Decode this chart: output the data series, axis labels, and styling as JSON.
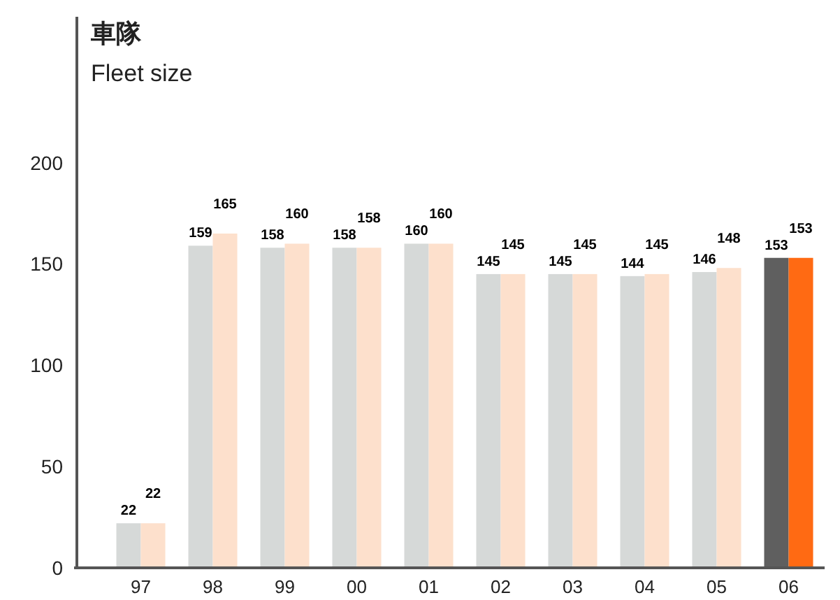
{
  "chart_data": {
    "type": "bar",
    "title": "車隊",
    "subtitle": "Fleet size",
    "categories": [
      "97",
      "98",
      "99",
      "00",
      "01",
      "02",
      "03",
      "04",
      "05",
      "06"
    ],
    "series": [
      {
        "colors": [
          "#d6d9d8",
          "#d6d9d8",
          "#d6d9d8",
          "#d6d9d8",
          "#d6d9d8",
          "#d6d9d8",
          "#d6d9d8",
          "#d6d9d8",
          "#d6d9d8",
          "#5f5f5f"
        ],
        "values": [
          22,
          159,
          158,
          158,
          160,
          145,
          145,
          144,
          146,
          153
        ]
      },
      {
        "colors": [
          "#fde0cc",
          "#fde0cc",
          "#fde0cc",
          "#fde0cc",
          "#fde0cc",
          "#fde0cc",
          "#fde0cc",
          "#fde0cc",
          "#fde0cc",
          "#ff6a13"
        ],
        "values": [
          22,
          165,
          160,
          158,
          160,
          145,
          145,
          145,
          148,
          153
        ]
      }
    ],
    "ylim": [
      0,
      272
    ],
    "yticks": [
      0,
      50,
      100,
      150,
      200
    ],
    "data_labels": true,
    "grid": false
  }
}
